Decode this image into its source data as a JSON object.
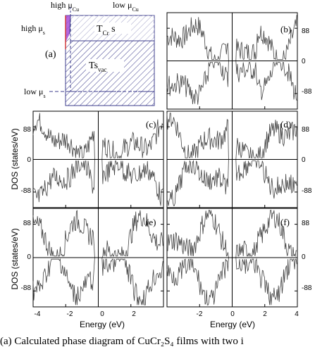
{
  "figure": {
    "caption": "(a) Calculated phase diagram of CuCr₂S₄ films with two i",
    "ylabel": "DOS (states/eV)",
    "xlabel": "Energy (eV)"
  },
  "phase_diagram": {
    "panel_label": "(a)",
    "high_mu_cu_base": "high μ",
    "high_mu_cu_sub": "Cu",
    "low_mu_cu_base": "low μ",
    "low_mu_cu_sub": "Cu",
    "high_mu_s_base": "high μ",
    "high_mu_s_sub": "s",
    "low_mu_s_base": "low μ",
    "low_mu_s_sub": "s",
    "region_top_base": "T",
    "region_top_sub": "Cr",
    "region_top_tail": " s",
    "region_main_base": "Ts",
    "region_main_sub": "vac",
    "colors": {
      "purple": "#a64ed8",
      "red": "#d23a3a",
      "hatch": "#3c3c8c"
    }
  },
  "chart_data": [
    {
      "panel": "(b)",
      "type": "line",
      "xlim": [
        -4,
        4
      ],
      "ylim": [
        -130,
        130
      ],
      "ytick_labels": [
        "88",
        "0",
        "-88"
      ],
      "show_x_ticks": false
    },
    {
      "panel": "(c)",
      "type": "line",
      "xlim": [
        -4,
        4
      ],
      "ylim": [
        -130,
        130
      ],
      "xticks": [
        -4,
        -2,
        0,
        2
      ],
      "ytick_labels": [
        "88",
        "0",
        "-88"
      ],
      "show_x_ticks": false
    },
    {
      "panel": "(d)",
      "type": "line",
      "xlim": [
        -4,
        4
      ],
      "ylim": [
        -130,
        130
      ],
      "ytick_labels": [
        "88",
        "0",
        "-88"
      ],
      "show_x_ticks": false
    },
    {
      "panel": "(e)",
      "type": "line",
      "xlim": [
        -4,
        4
      ],
      "ylim": [
        -130,
        130
      ],
      "ytick_labels": [
        "88",
        "0",
        "-88"
      ],
      "xtick_labels": [
        "-4",
        "-2",
        "0",
        "2"
      ],
      "show_x_ticks": true
    },
    {
      "panel": "(f)",
      "type": "line",
      "xlim": [
        -4,
        4
      ],
      "ylim": [
        -130,
        130
      ],
      "ytick_labels": [
        "88",
        "0",
        "-88"
      ],
      "xtick_labels": [
        "-2",
        "0",
        "2",
        "4"
      ],
      "show_x_ticks": true
    }
  ]
}
